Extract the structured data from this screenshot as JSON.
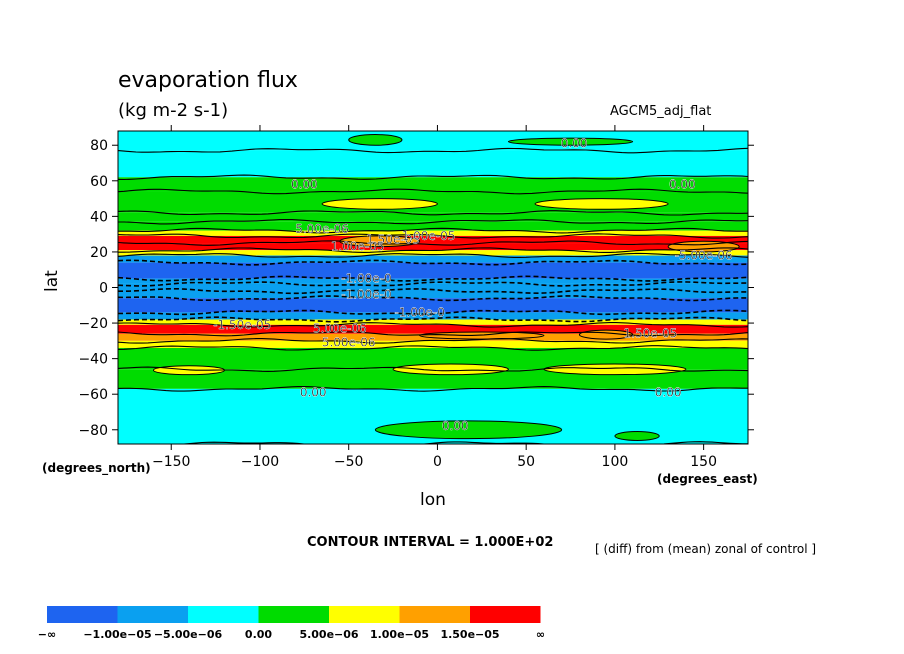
{
  "title": "evaporation flux",
  "units": "(kg m-2 s-1)",
  "model": "AGCM5_adj_flat",
  "y_axis_note": "(degrees_north)",
  "x_axis_note": "(degrees_east)",
  "contour_interval": "CONTOUR INTERVAL = 1.000E+02",
  "diff_note": "[ (diff) from (mean) zonal of control ]",
  "colors": {
    "lt_m1e5": "#1e64f0",
    "m1e5_m5e6": "#0aa0f0",
    "m5e6_0": "#00ffff",
    "0_5e6": "#00dc00",
    "5e6_1e5": "#ffff00",
    "1e5_1_5e5": "#ffa000",
    "gt_1_5e5": "#ff0000"
  },
  "chart_data": {
    "type": "contour",
    "title": "evaporation flux",
    "subtitle": "(kg m-2 s-1)",
    "xlabel": "lon",
    "ylabel": "lat",
    "xlim": [
      -180,
      175
    ],
    "ylim": [
      -88,
      88
    ],
    "x_ticks": [
      -150,
      -100,
      -50,
      0,
      50,
      100,
      150
    ],
    "x_tick_labels": [
      "−150",
      "−100",
      "−50",
      "0",
      "50",
      "100",
      "150"
    ],
    "y_ticks": [
      80,
      60,
      40,
      20,
      0,
      -20,
      -40,
      -60,
      -80
    ],
    "y_tick_labels": [
      "80",
      "60",
      "40",
      "20",
      "0",
      "−20",
      "−40",
      "−60",
      "−80"
    ],
    "legend": {
      "colors": [
        "#1e64f0",
        "#0aa0f0",
        "#00ffff",
        "#00dc00",
        "#ffff00",
        "#ffa000",
        "#ff0000"
      ],
      "labels": [
        "−∞",
        "−1.00e−05",
        "−5.00e−06",
        "0.00",
        "5.00e−06",
        "1.00e−05",
        "1.50e−05",
        "∞"
      ]
    },
    "bands": [
      {
        "lat": [
          77,
          88
        ],
        "color": "#00ffff"
      },
      {
        "lat": [
          62,
          77
        ],
        "color": "#00ffff"
      },
      {
        "lat": [
          54,
          62
        ],
        "color": "#00dc00"
      },
      {
        "lat": [
          42,
          54
        ],
        "color": "#00dc00"
      },
      {
        "lat": [
          37,
          42
        ],
        "color": "#00dc00"
      },
      {
        "lat": [
          32,
          37
        ],
        "color": "#00dc00"
      },
      {
        "lat": [
          29,
          32
        ],
        "color": "#ffff00"
      },
      {
        "lat": [
          25,
          29
        ],
        "color": "#ff0000"
      },
      {
        "lat": [
          21,
          25
        ],
        "color": "#ff0000"
      },
      {
        "lat": [
          18,
          21
        ],
        "color": "#ffff00"
      },
      {
        "lat": [
          14,
          18
        ],
        "color": "#0aa0f0"
      },
      {
        "lat": [
          5,
          14
        ],
        "color": "#1e64f0"
      },
      {
        "lat": [
          2,
          5
        ],
        "color": "#0aa0f0"
      },
      {
        "lat": [
          -2,
          2
        ],
        "color": "#00ffff"
      },
      {
        "lat": [
          -6,
          2
        ],
        "color": "#0aa0f0"
      },
      {
        "lat": [
          -14,
          -6
        ],
        "color": "#1e64f0"
      },
      {
        "lat": [
          -18,
          -14
        ],
        "color": "#0aa0f0"
      },
      {
        "lat": [
          -21,
          -18
        ],
        "color": "#ffff00"
      },
      {
        "lat": [
          -26,
          -21
        ],
        "color": "#ff0000"
      },
      {
        "lat": [
          -30,
          -26
        ],
        "color": "#ffa000"
      },
      {
        "lat": [
          -34,
          -30
        ],
        "color": "#ffff00"
      },
      {
        "lat": [
          -46,
          -34
        ],
        "color": "#00dc00"
      },
      {
        "lat": [
          -57,
          -46
        ],
        "color": "#00dc00"
      },
      {
        "lat": [
          -88,
          -57
        ],
        "color": "#00ffff"
      }
    ],
    "patches": [
      {
        "lon": [
          -65,
          0
        ],
        "lat": [
          44,
          50
        ],
        "color": "#ffff00"
      },
      {
        "lon": [
          55,
          130
        ],
        "lat": [
          44,
          50
        ],
        "color": "#ffff00"
      },
      {
        "lon": [
          -25,
          40
        ],
        "lat": [
          -49,
          -43
        ],
        "color": "#ffff00"
      },
      {
        "lon": [
          60,
          140
        ],
        "lat": [
          -49,
          -43
        ],
        "color": "#ffff00"
      },
      {
        "lon": [
          -160,
          -120
        ],
        "lat": [
          -49,
          -44
        ],
        "color": "#ffff00"
      },
      {
        "lon": [
          130,
          170
        ],
        "lat": [
          20,
          26
        ],
        "color": "#ffa000"
      },
      {
        "lon": [
          80,
          110
        ],
        "lat": [
          -29,
          -24
        ],
        "color": "#ffa000"
      },
      {
        "lon": [
          -10,
          60
        ],
        "lat": [
          -29,
          -25
        ],
        "color": "#ffa000"
      },
      {
        "lon": [
          -55,
          -10
        ],
        "lat": [
          23,
          29
        ],
        "color": "#ffa000"
      },
      {
        "lon": [
          -50,
          -20
        ],
        "lat": [
          80,
          86
        ],
        "color": "#00dc00"
      },
      {
        "lon": [
          40,
          110
        ],
        "lat": [
          80,
          84
        ],
        "color": "#00dc00"
      },
      {
        "lon": [
          -35,
          70
        ],
        "lat": [
          -85,
          -75
        ],
        "color": "#00dc00"
      },
      {
        "lon": [
          100,
          125
        ],
        "lat": [
          -86,
          -81
        ],
        "color": "#00dc00"
      }
    ],
    "contour_labels": [
      {
        "text": "0.00",
        "lon": 77,
        "lat": 81
      },
      {
        "text": "0.00",
        "lon": -75,
        "lat": 58
      },
      {
        "text": "0.00",
        "lon": 138,
        "lat": 58
      },
      {
        "text": "5.00e-06",
        "lon": -65,
        "lat": 33
      },
      {
        "text": "1.50e-05",
        "lon": -25,
        "lat": 27
      },
      {
        "text": "1.00e-05",
        "lon": -5,
        "lat": 29
      },
      {
        "text": "1.00e-05",
        "lon": -45,
        "lat": 23
      },
      {
        "text": "-5.00e-06",
        "lon": 150,
        "lat": 18
      },
      {
        "text": "-1.00e-0",
        "lon": -40,
        "lat": 5
      },
      {
        "text": "-1.00e-0",
        "lon": -40,
        "lat": -4
      },
      {
        "text": "-1.00e-0",
        "lon": -10,
        "lat": -14
      },
      {
        "text": "-1.50e-05",
        "lon": -110,
        "lat": -21
      },
      {
        "text": "5.00e-06",
        "lon": -55,
        "lat": -23
      },
      {
        "text": "1.50e-05",
        "lon": 120,
        "lat": -26
      },
      {
        "text": "5.00e-06",
        "lon": -50,
        "lat": -31
      },
      {
        "text": "0.00",
        "lon": -70,
        "lat": -59
      },
      {
        "text": "0.00",
        "lon": 130,
        "lat": -59
      },
      {
        "text": "0.00",
        "lon": 10,
        "lat": -78
      }
    ],
    "grid": false
  }
}
